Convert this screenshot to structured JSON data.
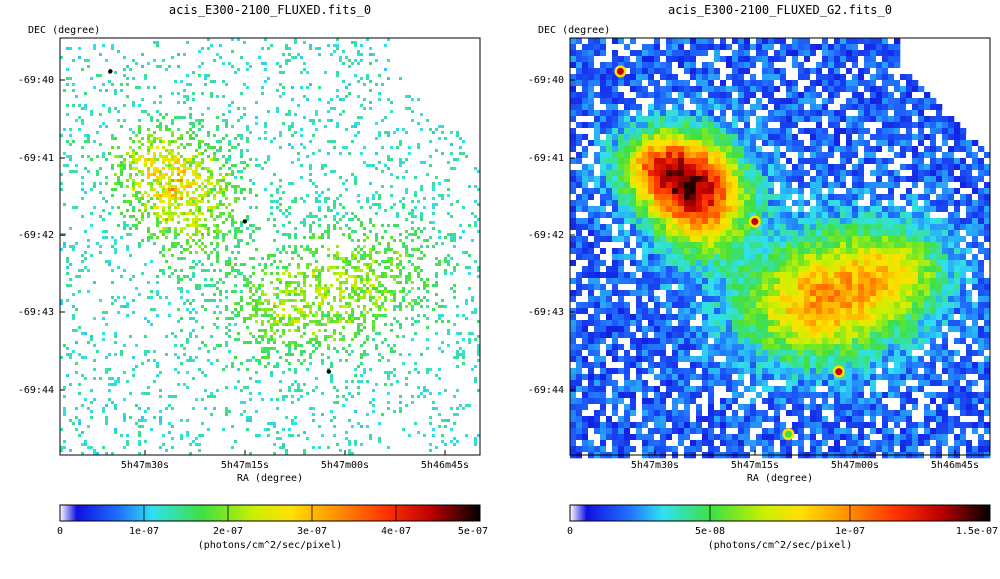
{
  "panels": [
    {
      "title": "acis_E300-2100_FLUXED.fits_0",
      "y_label": "DEC (degree)",
      "x_label": "RA (degree)",
      "colorbar_label": "(photons/cm^2/sec/pixel)",
      "colorbar_ticks": [
        "0",
        "1e-07",
        "2e-07",
        "3e-07",
        "4e-07",
        "5e-07"
      ],
      "colorbar_values": [
        0,
        1e-07,
        2e-07,
        3e-07,
        4e-07,
        5e-07
      ]
    },
    {
      "title": "acis_E300-2100_FLUXED_G2.fits_0",
      "y_label": "DEC (degree)",
      "x_label": "RA (degree)",
      "colorbar_label": "(photons/cm^2/sec/pixel)",
      "colorbar_ticks": [
        "0",
        "5e-08",
        "1e-07",
        "1.5e-07"
      ],
      "colorbar_values": [
        0,
        5e-08,
        1e-07,
        1.5e-07
      ]
    }
  ],
  "chart_data": [
    {
      "type": "heatmap",
      "title": "acis_E300-2100_FLUXED.fits_0",
      "xlabel": "RA (degree)",
      "ylabel": "DEC (degree)",
      "x_ticks": [
        "5h47m30s",
        "5h47m15s",
        "5h47m00s",
        "5h46m45s"
      ],
      "y_ticks": [
        "-69:40",
        "-69:41",
        "-69:42",
        "-69:43",
        "-69:44"
      ],
      "colorbar_range": [
        0,
        5e-07
      ],
      "colormap": "rainbow",
      "smoothed": false
    },
    {
      "type": "heatmap",
      "title": "acis_E300-2100_FLUXED_G2.fits_0",
      "xlabel": "RA (degree)",
      "ylabel": "DEC (degree)",
      "x_ticks": [
        "5h47m30s",
        "5h47m15s",
        "5h47m00s",
        "5h46m45s"
      ],
      "y_ticks": [
        "-69:40",
        "-69:41",
        "-69:42",
        "-69:43",
        "-69:44"
      ],
      "colorbar_range": [
        0,
        1.5e-07
      ],
      "colormap": "rainbow",
      "smoothed": true
    }
  ]
}
